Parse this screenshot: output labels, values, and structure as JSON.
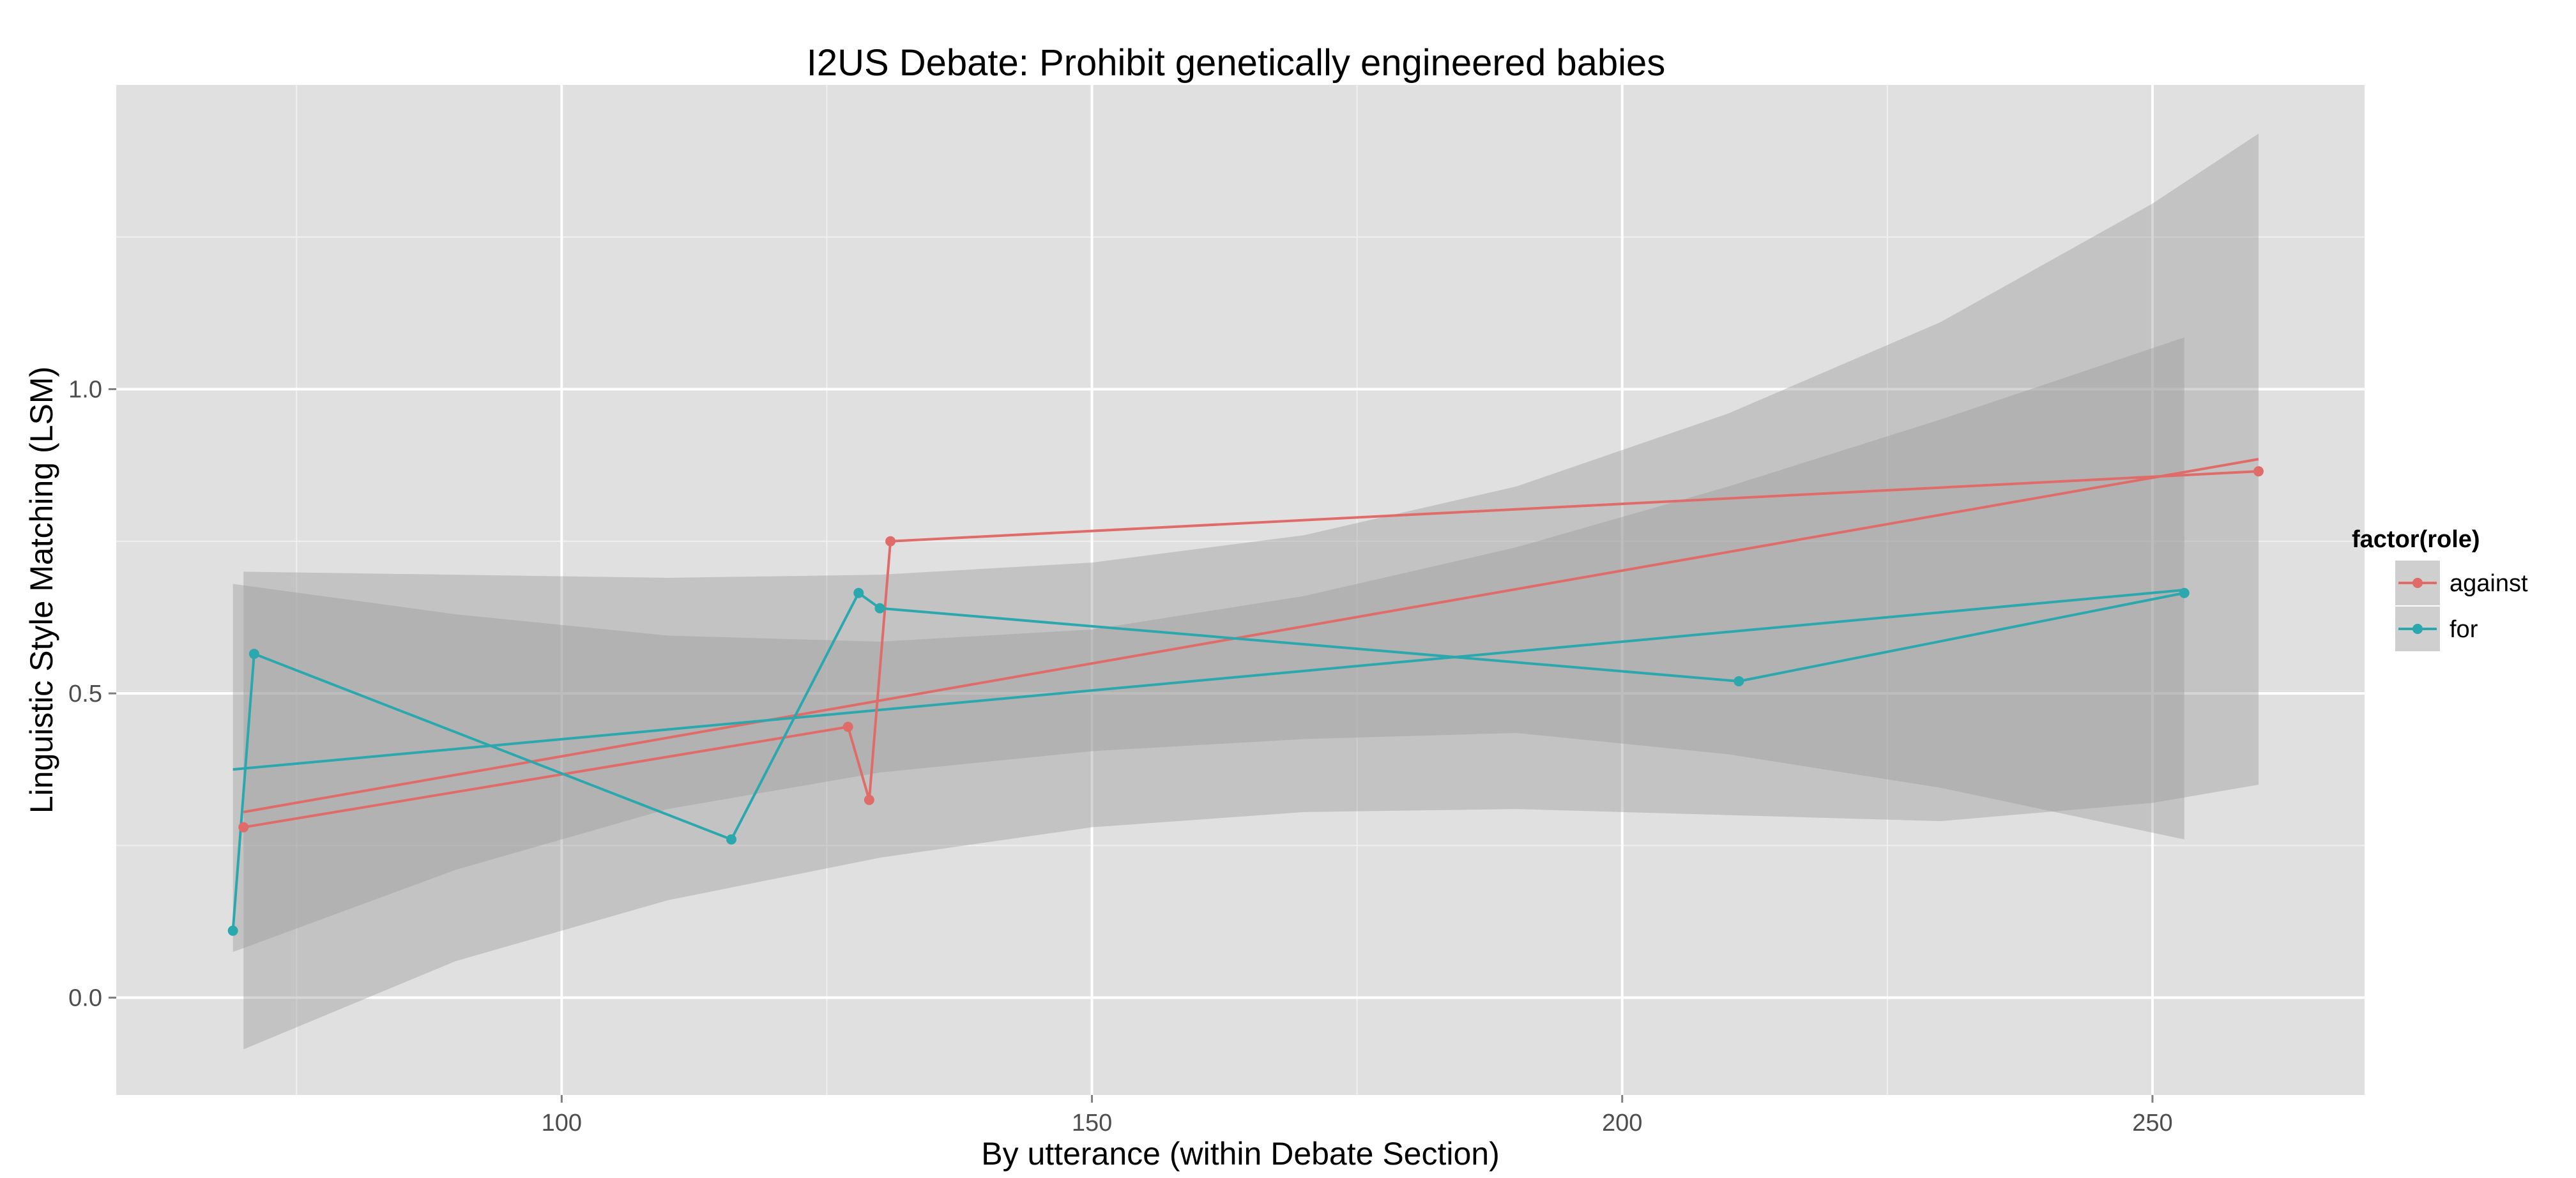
{
  "chart_data": {
    "type": "line",
    "title": "I2US Debate: Prohibit genetically engineered babies",
    "xlabel": "By utterance (within Debate Section)",
    "ylabel": "Linguistic Style Matching (LSM)",
    "xlim": [
      58,
      270
    ],
    "ylim": [
      -0.16,
      1.5
    ],
    "x_ticks": [
      100,
      150,
      200,
      250
    ],
    "x_tick_labels": [
      "100",
      "150",
      "200",
      "250"
    ],
    "y_ticks": [
      0.0,
      0.5,
      1.0
    ],
    "y_tick_labels": [
      "0.0",
      "0.5",
      "1.0"
    ],
    "grid": true,
    "legend": {
      "title": "factor(role)",
      "position": "right"
    },
    "series": [
      {
        "name": "against",
        "color": "#e06c69",
        "points": [
          {
            "x": 70,
            "y": 0.28
          },
          {
            "x": 127,
            "y": 0.445
          },
          {
            "x": 129,
            "y": 0.325
          },
          {
            "x": 131,
            "y": 0.75
          },
          {
            "x": 260,
            "y": 0.865
          }
        ],
        "fit": {
          "x": [
            70,
            260
          ],
          "y": [
            0.305,
            0.885
          ]
        },
        "ci": {
          "x": [
            70,
            90,
            110,
            130,
            150,
            170,
            190,
            210,
            230,
            250,
            260
          ],
          "upper": [
            0.7,
            0.695,
            0.69,
            0.695,
            0.715,
            0.76,
            0.84,
            0.96,
            1.11,
            1.305,
            1.42
          ],
          "lower": [
            -0.085,
            0.06,
            0.16,
            0.23,
            0.28,
            0.305,
            0.31,
            0.3,
            0.29,
            0.32,
            0.35
          ]
        }
      },
      {
        "name": "for",
        "color": "#2aa8ae",
        "points": [
          {
            "x": 69,
            "y": 0.11
          },
          {
            "x": 71,
            "y": 0.565
          },
          {
            "x": 116,
            "y": 0.26
          },
          {
            "x": 128,
            "y": 0.665
          },
          {
            "x": 130,
            "y": 0.64
          },
          {
            "x": 211,
            "y": 0.52
          },
          {
            "x": 253,
            "y": 0.665
          }
        ],
        "fit": {
          "x": [
            69,
            253
          ],
          "y": [
            0.375,
            0.67
          ]
        },
        "ci": {
          "x": [
            69,
            90,
            110,
            130,
            150,
            170,
            190,
            210,
            230,
            253
          ],
          "upper": [
            0.68,
            0.63,
            0.595,
            0.585,
            0.605,
            0.66,
            0.74,
            0.84,
            0.95,
            1.085
          ],
          "lower": [
            0.075,
            0.21,
            0.31,
            0.37,
            0.405,
            0.425,
            0.435,
            0.4,
            0.345,
            0.26
          ]
        }
      }
    ]
  }
}
